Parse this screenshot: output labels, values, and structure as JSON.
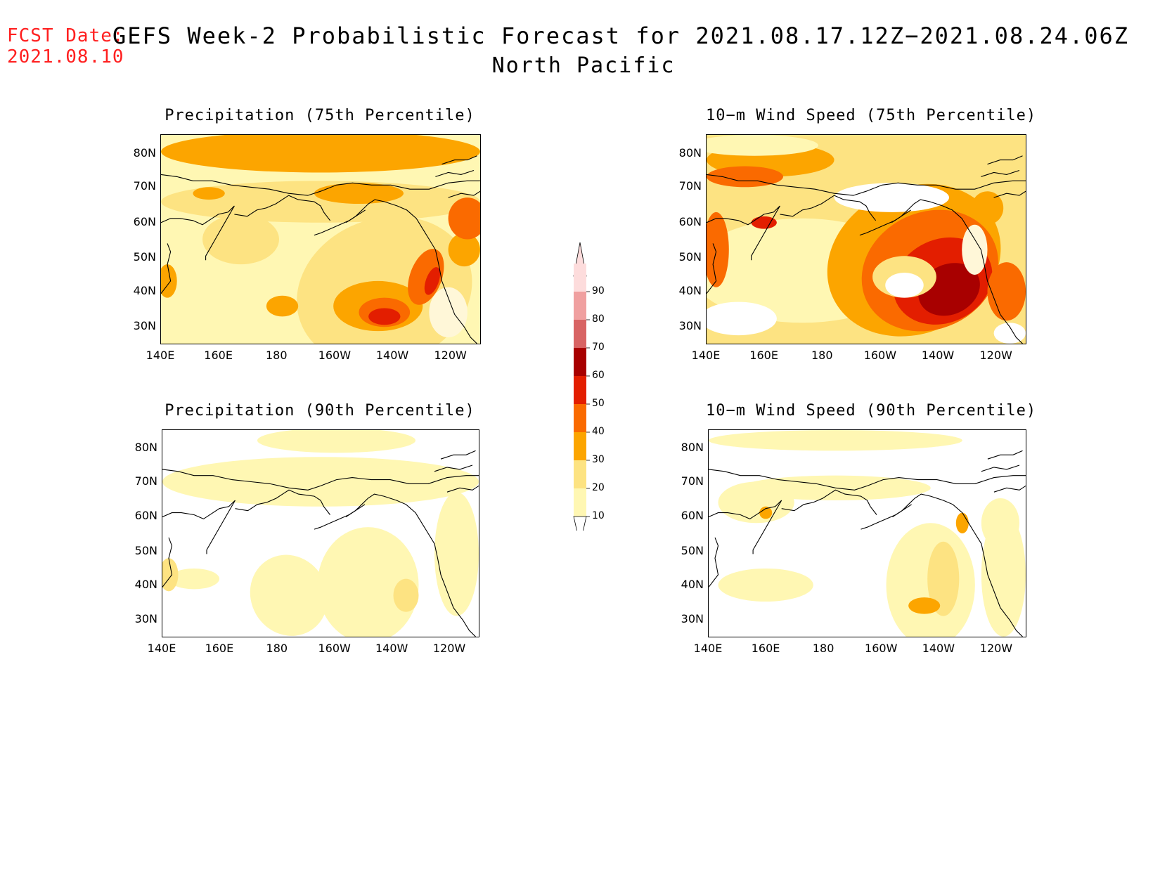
{
  "forecast_date": {
    "label": "FCST Date:",
    "value": "2021.08.10"
  },
  "title": {
    "line1": "GEFS Week-2 Probabilistic Forecast for 2021.08.17.12Z−2021.08.24.06Z",
    "line2": "North Pacific"
  },
  "colorbar": {
    "levels": [
      "10",
      "20",
      "30",
      "40",
      "50",
      "60",
      "70",
      "80",
      "90"
    ],
    "colors": [
      "#fff7b3",
      "#fde382",
      "#fca500",
      "#fa6a00",
      "#e31e00",
      "#a80000",
      "#d86464",
      "#f0a0a0",
      "#fddcdc"
    ]
  },
  "panels": [
    {
      "id": "precip75",
      "title": "Precipitation (75th Percentile)"
    },
    {
      "id": "wind75",
      "title": "10−m Wind Speed (75th Percentile)"
    },
    {
      "id": "precip90",
      "title": "Precipitation (90th Percentile)"
    },
    {
      "id": "wind90",
      "title": "10−m Wind Speed (90th Percentile)"
    }
  ],
  "axes": {
    "x_ticks": [
      "140E",
      "160E",
      "180",
      "160W",
      "140W",
      "120W"
    ],
    "y_ticks": [
      "80N",
      "70N",
      "60N",
      "50N",
      "40N",
      "30N"
    ]
  }
}
